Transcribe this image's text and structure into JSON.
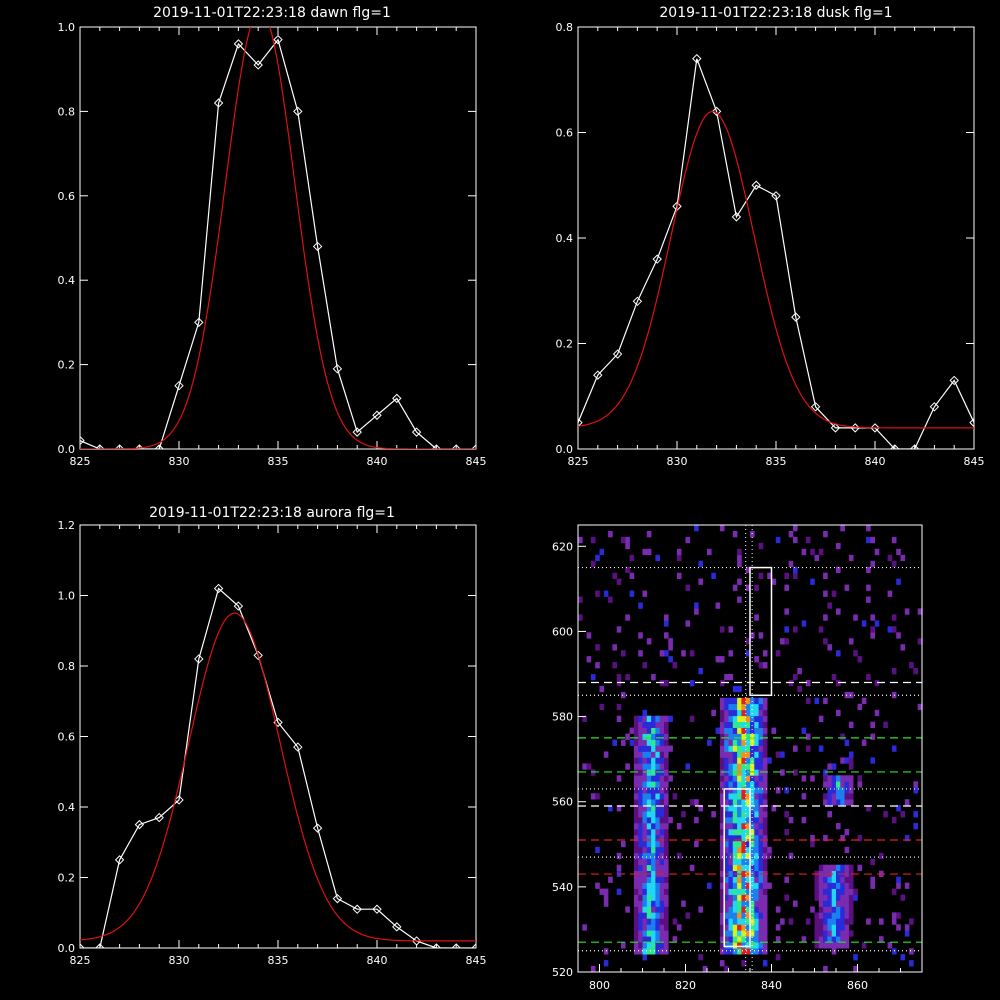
{
  "chart_data": [
    {
      "type": "line",
      "title": "2019-11-01T22:23:18 dawn flg=1",
      "xlim": [
        825,
        845
      ],
      "ylim": [
        0,
        1.0
      ],
      "xticks": [
        825,
        830,
        835,
        840,
        845
      ],
      "yticks": [
        0.0,
        0.2,
        0.4,
        0.6,
        0.8,
        1.0
      ],
      "ytick_labels": [
        "0.0",
        "0.2",
        "0.4",
        "0.6",
        "0.8",
        "1.0"
      ],
      "series": [
        {
          "color": "#ffffff",
          "markers": "diamond",
          "x": [
            825,
            826,
            827,
            828,
            829,
            830,
            831,
            832,
            833,
            834,
            835,
            836,
            837,
            838,
            839,
            840,
            841,
            842,
            843,
            844,
            845
          ],
          "y": [
            0.02,
            0.0,
            0.0,
            0.0,
            0.0,
            0.15,
            0.3,
            0.82,
            0.96,
            0.91,
            0.97,
            0.8,
            0.48,
            0.19,
            0.04,
            0.08,
            0.12,
            0.04,
            0.0,
            0.0,
            0.0
          ]
        },
        {
          "color": "#e01010",
          "fit": "gaussian",
          "amp": 1.04,
          "mu": 834.1,
          "sigma": 1.75,
          "offset": 0.0
        }
      ]
    },
    {
      "type": "line",
      "title": "2019-11-01T22:23:18 dusk flg=1",
      "xlim": [
        825,
        845
      ],
      "ylim": [
        0,
        0.8
      ],
      "xticks": [
        825,
        830,
        835,
        840,
        845
      ],
      "yticks": [
        0.0,
        0.2,
        0.4,
        0.6,
        0.8
      ],
      "ytick_labels": [
        "0.0",
        "0.2",
        "0.4",
        "0.6",
        "0.8"
      ],
      "series": [
        {
          "color": "#ffffff",
          "markers": "diamond",
          "x": [
            825,
            826,
            827,
            828,
            829,
            830,
            831,
            832,
            833,
            834,
            835,
            836,
            837,
            838,
            839,
            840,
            841,
            842,
            843,
            844,
            845
          ],
          "y": [
            0.05,
            0.14,
            0.18,
            0.28,
            0.36,
            0.46,
            0.74,
            0.64,
            0.44,
            0.5,
            0.48,
            0.25,
            0.08,
            0.04,
            0.04,
            0.04,
            0.0,
            0.0,
            0.08,
            0.13,
            0.05
          ]
        },
        {
          "color": "#e01010",
          "fit": "gaussian",
          "amp": 0.6,
          "mu": 831.8,
          "sigma": 2.1,
          "offset": 0.04
        }
      ]
    },
    {
      "type": "line",
      "title": "2019-11-01T22:23:18 aurora flg=1",
      "xlim": [
        825,
        845
      ],
      "ylim": [
        0,
        1.2
      ],
      "xticks": [
        825,
        830,
        835,
        840,
        845
      ],
      "yticks": [
        0.0,
        0.2,
        0.4,
        0.6,
        0.8,
        1.0,
        1.2
      ],
      "ytick_labels": [
        "0.0",
        "0.2",
        "0.4",
        "0.6",
        "0.8",
        "1.0",
        "1.2"
      ],
      "series": [
        {
          "color": "#ffffff",
          "markers": "diamond",
          "x": [
            825,
            826,
            827,
            828,
            829,
            830,
            831,
            832,
            833,
            834,
            835,
            836,
            837,
            838,
            839,
            840,
            841,
            842,
            843,
            844,
            845
          ],
          "y": [
            0.0,
            0.0,
            0.25,
            0.35,
            0.37,
            0.42,
            0.82,
            1.02,
            0.97,
            0.83,
            0.64,
            0.57,
            0.34,
            0.14,
            0.11,
            0.11,
            0.06,
            0.02,
            0.0,
            0.0,
            0.0
          ]
        },
        {
          "color": "#e01010",
          "fit": "gaussian",
          "amp": 0.93,
          "mu": 832.8,
          "sigma": 2.3,
          "offset": 0.02
        }
      ]
    },
    {
      "type": "heatmap",
      "xlim": [
        795,
        875
      ],
      "ylim": [
        520,
        625
      ],
      "xticks": [
        800,
        820,
        840,
        860
      ],
      "yticks": [
        520,
        540,
        560,
        580,
        600,
        620
      ],
      "colormap": [
        "#5a1080",
        "#7a2bb0",
        "#2a2ad8",
        "#1c7ff0",
        "#20d8f0",
        "#30e890",
        "#d8f020",
        "#f09020",
        "#e02020"
      ],
      "bands": [
        {
          "x_range": [
            808,
            815
          ],
          "y_range": [
            523,
            580
          ],
          "intensity": 0.55
        },
        {
          "x_range": [
            828,
            838
          ],
          "y_range": [
            523,
            583
          ],
          "intensity": 0.85
        },
        {
          "x_range": [
            850,
            858
          ],
          "y_range": [
            525,
            545
          ],
          "intensity": 0.4
        },
        {
          "x_range": [
            852,
            858
          ],
          "y_range": [
            558,
            566
          ],
          "intensity": 0.45
        }
      ],
      "boxes": [
        {
          "x": [
            829,
            835
          ],
          "y": [
            526,
            563
          ],
          "color": "#ffffff",
          "style": "solid"
        },
        {
          "x": [
            835,
            840
          ],
          "y": [
            585,
            615
          ],
          "color": "#ffffff",
          "style": "solid"
        }
      ],
      "hlines": [
        {
          "y": 615,
          "color": "#ffffff",
          "style": "dotted"
        },
        {
          "y": 588,
          "color": "#ffffff",
          "style": "dashed"
        },
        {
          "y": 585,
          "color": "#ffffff",
          "style": "dotted"
        },
        {
          "y": 575,
          "color": "#30e030",
          "style": "dashed"
        },
        {
          "y": 567,
          "color": "#30e030",
          "style": "dashed"
        },
        {
          "y": 563,
          "color": "#ffffff",
          "style": "dotted"
        },
        {
          "y": 559,
          "color": "#ffffff",
          "style": "dashed"
        },
        {
          "y": 551,
          "color": "#e02020",
          "style": "dashed"
        },
        {
          "y": 547,
          "color": "#ffffff",
          "style": "dotted"
        },
        {
          "y": 543,
          "color": "#e02020",
          "style": "dashed"
        },
        {
          "y": 527,
          "color": "#30e030",
          "style": "dashed"
        },
        {
          "y": 525,
          "color": "#ffffff",
          "style": "dotted"
        }
      ],
      "vlines": [
        {
          "x": 834,
          "color": "#ffffff",
          "style": "dotted"
        },
        {
          "x": 835.5,
          "color": "#ffffff",
          "style": "dotted"
        }
      ]
    }
  ]
}
